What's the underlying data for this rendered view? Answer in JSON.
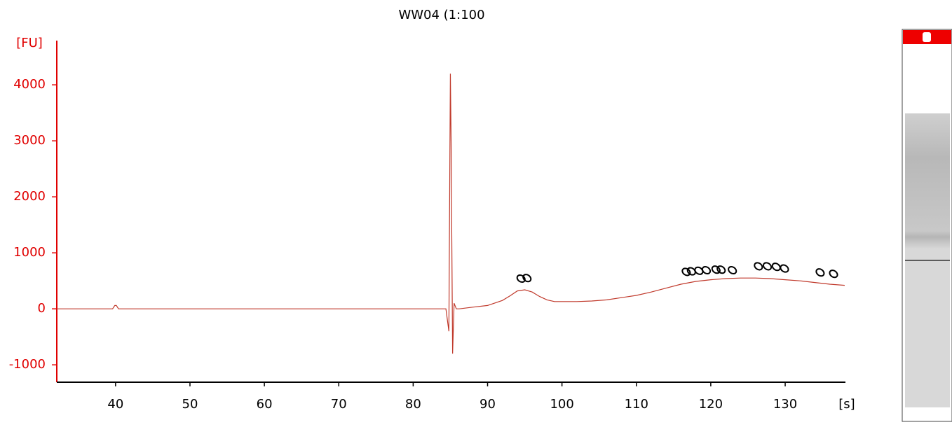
{
  "chart_data": {
    "type": "line",
    "title": "WW04 (1:100",
    "y_label": "[FU]",
    "x_label": "[s]",
    "color": "#c0392b",
    "axis_color": "#e00000",
    "xlim": [
      32.1,
      138.1
    ],
    "ylim": [
      -1310,
      4790
    ],
    "xticks": [
      40,
      50,
      60,
      70,
      80,
      90,
      100,
      110,
      120,
      130
    ],
    "yticks": [
      -1000,
      0,
      1000,
      2000,
      3000,
      4000
    ],
    "x": [
      32.1,
      39.6,
      39.9,
      40.1,
      40.4,
      84.4,
      84.8,
      85.0,
      85.1,
      85.3,
      85.5,
      85.8,
      86.2,
      88,
      90,
      92,
      93,
      94,
      95,
      96,
      97,
      98,
      99,
      100,
      102,
      104,
      106,
      108,
      110,
      112,
      114,
      116,
      118,
      120,
      122,
      124,
      126,
      128,
      130,
      132,
      134,
      136,
      138
    ],
    "values": [
      0,
      0,
      60,
      60,
      0,
      0,
      -400,
      4200,
      3000,
      -800,
      100,
      0,
      0,
      30,
      60,
      150,
      230,
      320,
      340,
      300,
      220,
      160,
      130,
      130,
      130,
      140,
      160,
      200,
      240,
      300,
      370,
      440,
      490,
      520,
      540,
      550,
      550,
      540,
      520,
      500,
      470,
      440,
      420
    ],
    "markers": {
      "x": [
        94.5,
        95.3,
        116.7,
        117.4,
        118.4,
        119.4,
        120.7,
        121.4,
        122.9,
        126.4,
        127.6,
        128.8,
        129.9,
        134.7,
        136.5
      ],
      "values": [
        540,
        550,
        660,
        670,
        680,
        690,
        700,
        700,
        690,
        760,
        760,
        750,
        720,
        650,
        625
      ]
    }
  }
}
